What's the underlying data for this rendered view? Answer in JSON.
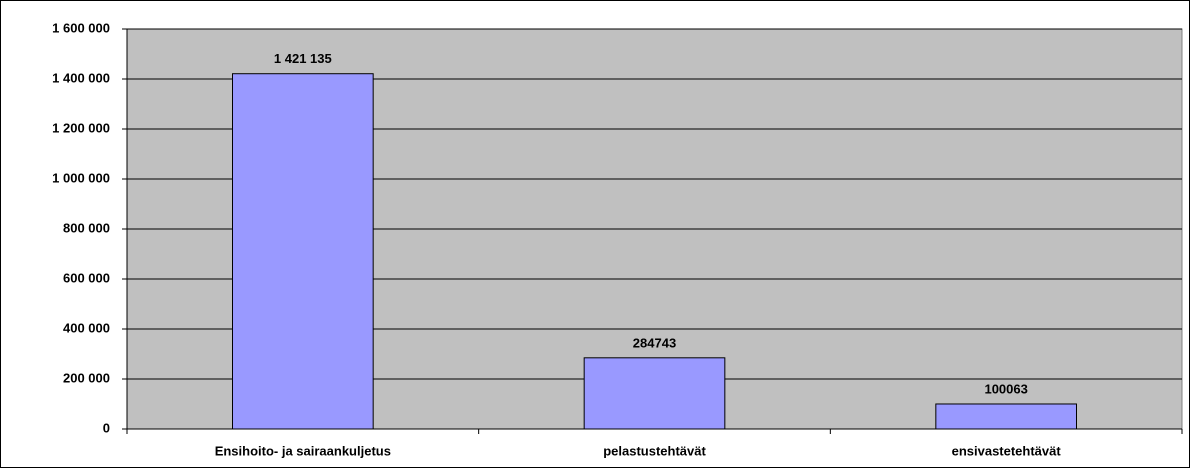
{
  "chart_data": {
    "type": "bar",
    "categories": [
      "Ensihoito- ja sairaankuljetus",
      "pelastustehtävät",
      "ensivastetehtävät"
    ],
    "values": [
      1421135,
      284743,
      100063
    ],
    "value_labels": [
      "1 421 135",
      "284743",
      "100063"
    ],
    "color": "#9999ff",
    "ylim": [
      0,
      1600000
    ],
    "yticks": [
      0,
      {
        "value": 200000,
        "label": "200 000"
      },
      {
        "value": 400000,
        "label": "400 000"
      },
      {
        "value": 600000,
        "label": "600 000"
      },
      {
        "value": 800000,
        "label": "800 000"
      },
      {
        "value": 1000000,
        "label": "1 000 000"
      },
      {
        "value": 1200000,
        "label": "1 200 000"
      },
      {
        "value": 1400000,
        "label": "1 400 000"
      },
      {
        "value": 1600000,
        "label": "1 600 000"
      }
    ],
    "grid": true
  }
}
